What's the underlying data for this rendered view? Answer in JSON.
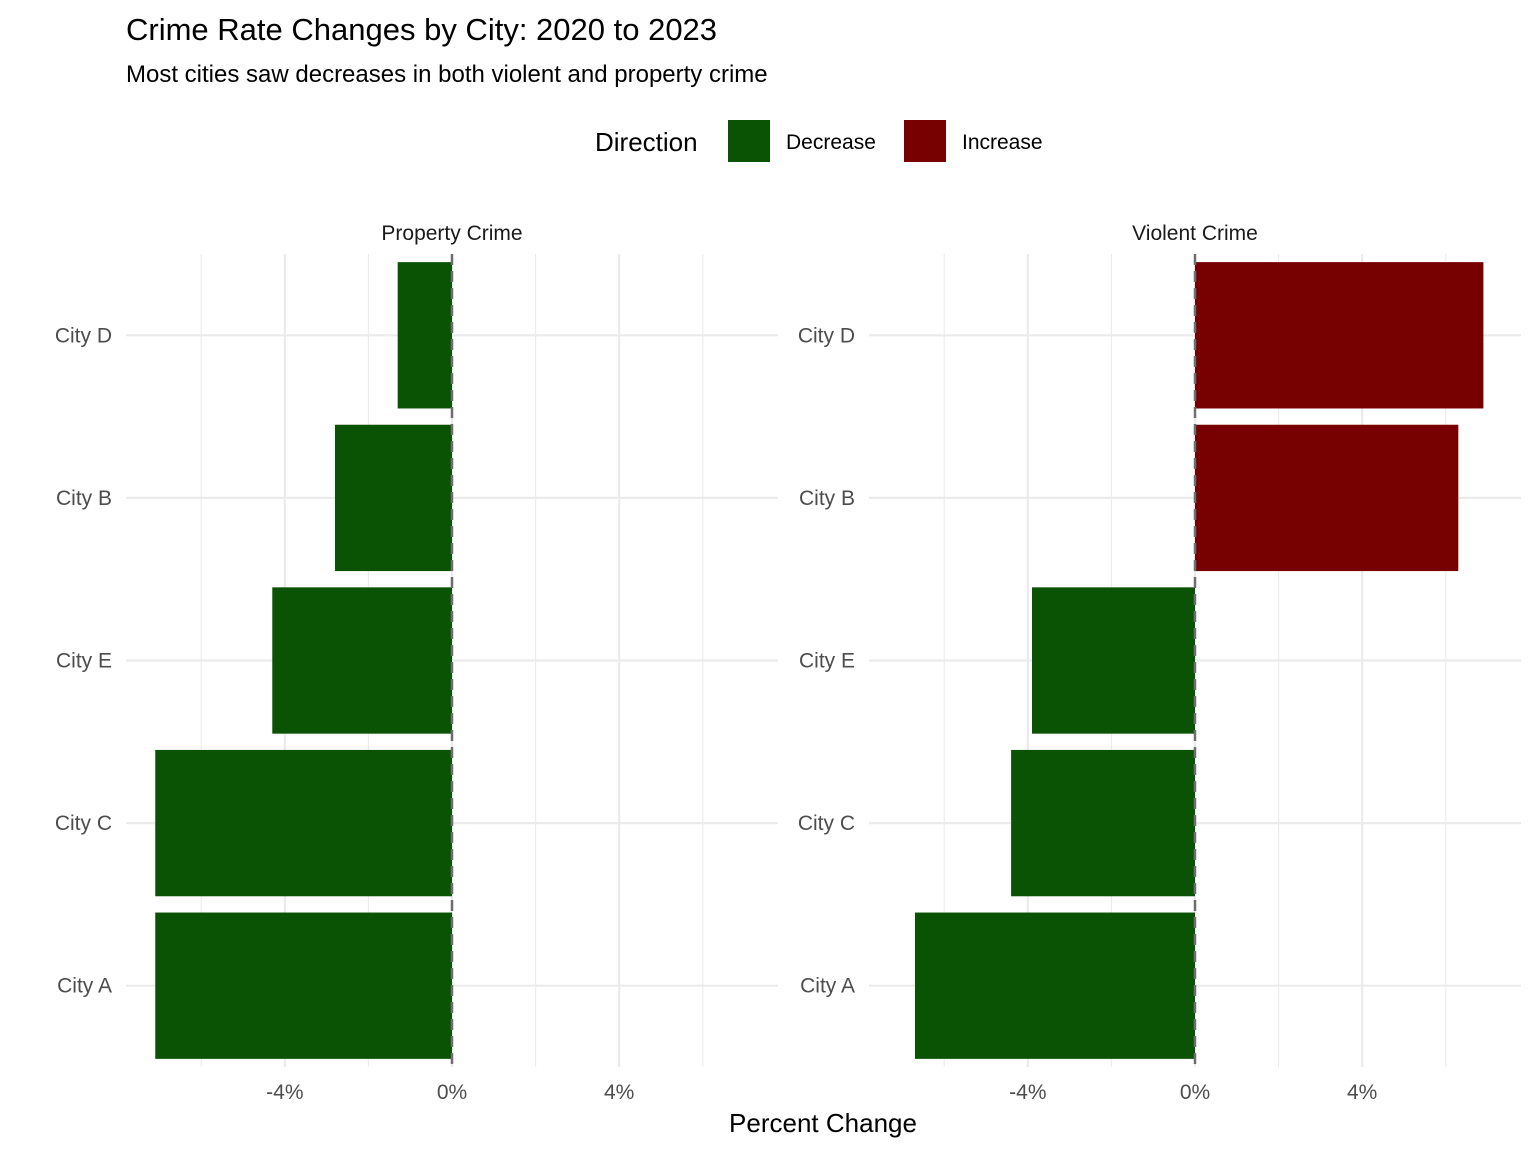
{
  "chart_data": {
    "type": "bar",
    "orientation": "horizontal",
    "title": "Crime Rate Changes by City: 2020 to 2023",
    "subtitle": "Most cities saw decreases in both violent and property crime",
    "xlabel": "Percent Change",
    "ylabel": "",
    "categories": [
      "City A",
      "City C",
      "City E",
      "City B",
      "City D"
    ],
    "xlim": [
      -7.8,
      7.8
    ],
    "x_ticks": [
      -4,
      0,
      4
    ],
    "x_tick_labels": [
      "-4%",
      "0%",
      "4%"
    ],
    "reference_line": 0,
    "grid": true,
    "legend": {
      "title": "Direction",
      "position": "top",
      "entries": [
        {
          "label": "Decrease",
          "color": "#0b5304"
        },
        {
          "label": "Increase",
          "color": "#770000"
        }
      ]
    },
    "panels": [
      {
        "name": "Property Crime",
        "values": [
          -7.1,
          -7.1,
          -4.3,
          -2.8,
          -1.3
        ],
        "directions": [
          "Decrease",
          "Decrease",
          "Decrease",
          "Decrease",
          "Decrease"
        ]
      },
      {
        "name": "Violent Crime",
        "values": [
          -6.7,
          -4.4,
          -3.9,
          6.3,
          6.9
        ],
        "directions": [
          "Decrease",
          "Decrease",
          "Decrease",
          "Increase",
          "Increase"
        ]
      }
    ]
  }
}
